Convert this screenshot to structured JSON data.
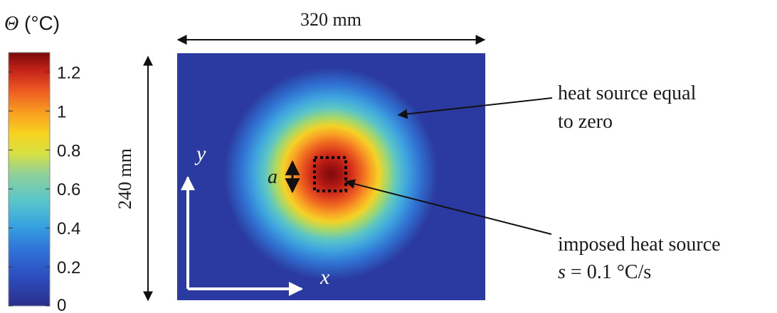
{
  "colorbar": {
    "title_symbol": "Θ",
    "title_unit": " (°C)",
    "ticks": [
      "0",
      "0.2",
      "0.4",
      "0.6",
      "0.8",
      "1",
      "1.2"
    ],
    "tick_values": [
      0,
      0.2,
      0.4,
      0.6,
      0.8,
      1.0,
      1.2
    ],
    "range": [
      0,
      1.3
    ]
  },
  "dimensions": {
    "width_label": "320 mm",
    "height_label": "240 mm"
  },
  "axes": {
    "x_label": "x",
    "y_label": "y"
  },
  "source": {
    "size_label": "a"
  },
  "annotations": {
    "zero_line1": "heat source equal",
    "zero_line2": "to zero",
    "imposed_line1": "imposed heat source",
    "imposed_var": "s",
    "imposed_value": " = 0.1 °C/s"
  },
  "colors": {
    "map_low": "#2b3aa0",
    "map_peak": "#7a0a0a",
    "arrow_axes": "#ffffff",
    "text": "#1a1a1a"
  }
}
